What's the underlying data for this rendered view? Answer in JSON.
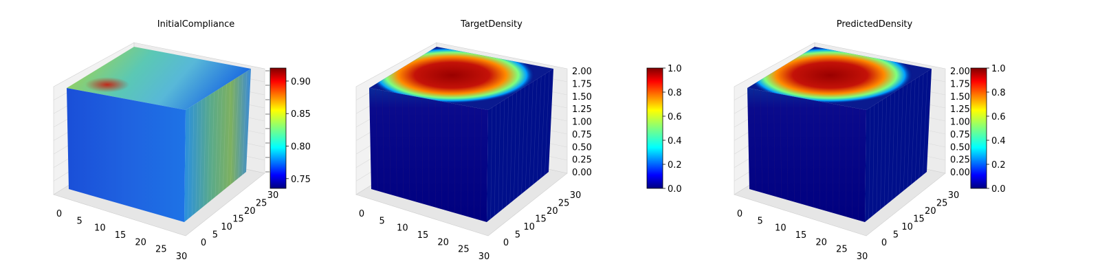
{
  "chart_data": [
    {
      "type": "heatmap",
      "title": "InitialCompliance",
      "x_ticks": [
        "0",
        "5",
        "10",
        "15",
        "20",
        "25",
        "30"
      ],
      "y_ticks": [
        "0",
        "5",
        "10",
        "15",
        "20",
        "25",
        "30"
      ],
      "colorbar": {
        "colormap": "jet",
        "range": [
          0.735,
          0.92
        ],
        "ticks": [
          "0.75",
          "0.80",
          "0.85",
          "0.90"
        ]
      }
    },
    {
      "type": "heatmap",
      "title": "TargetDensity",
      "x_ticks": [
        "0",
        "5",
        "10",
        "15",
        "20",
        "25",
        "30"
      ],
      "y_ticks": [
        "0",
        "5",
        "10",
        "15",
        "20",
        "25",
        "30"
      ],
      "z_ticks": [
        "0.00",
        "0.25",
        "0.50",
        "0.75",
        "1.00",
        "1.25",
        "1.50",
        "1.75",
        "2.00"
      ],
      "colorbar": {
        "colormap": "jet",
        "range": [
          0,
          1
        ],
        "ticks": [
          "0.0",
          "0.2",
          "0.4",
          "0.6",
          "0.8",
          "1.0"
        ]
      }
    },
    {
      "type": "heatmap",
      "title": "PredictedDensity",
      "x_ticks": [
        "0",
        "5",
        "10",
        "15",
        "20",
        "25",
        "30"
      ],
      "y_ticks": [
        "0",
        "5",
        "10",
        "15",
        "20",
        "25",
        "30"
      ],
      "z_ticks": [
        "0.00",
        "0.25",
        "0.50",
        "0.75",
        "1.00",
        "1.25",
        "1.50",
        "1.75",
        "2.00"
      ],
      "colorbar": {
        "colormap": "jet",
        "range": [
          0,
          1
        ],
        "ticks": [
          "0.0",
          "0.2",
          "0.4",
          "0.6",
          "0.8",
          "1.0"
        ]
      }
    }
  ],
  "colors": {
    "jet_stops": [
      "#00007f",
      "#0000ff",
      "#007fff",
      "#00ffff",
      "#7fff7f",
      "#ffff00",
      "#ff7f00",
      "#ff0000",
      "#7f0000"
    ],
    "pane_fill": "#f2f2f2",
    "grid": "#d9d9d9",
    "text": "#000000"
  }
}
